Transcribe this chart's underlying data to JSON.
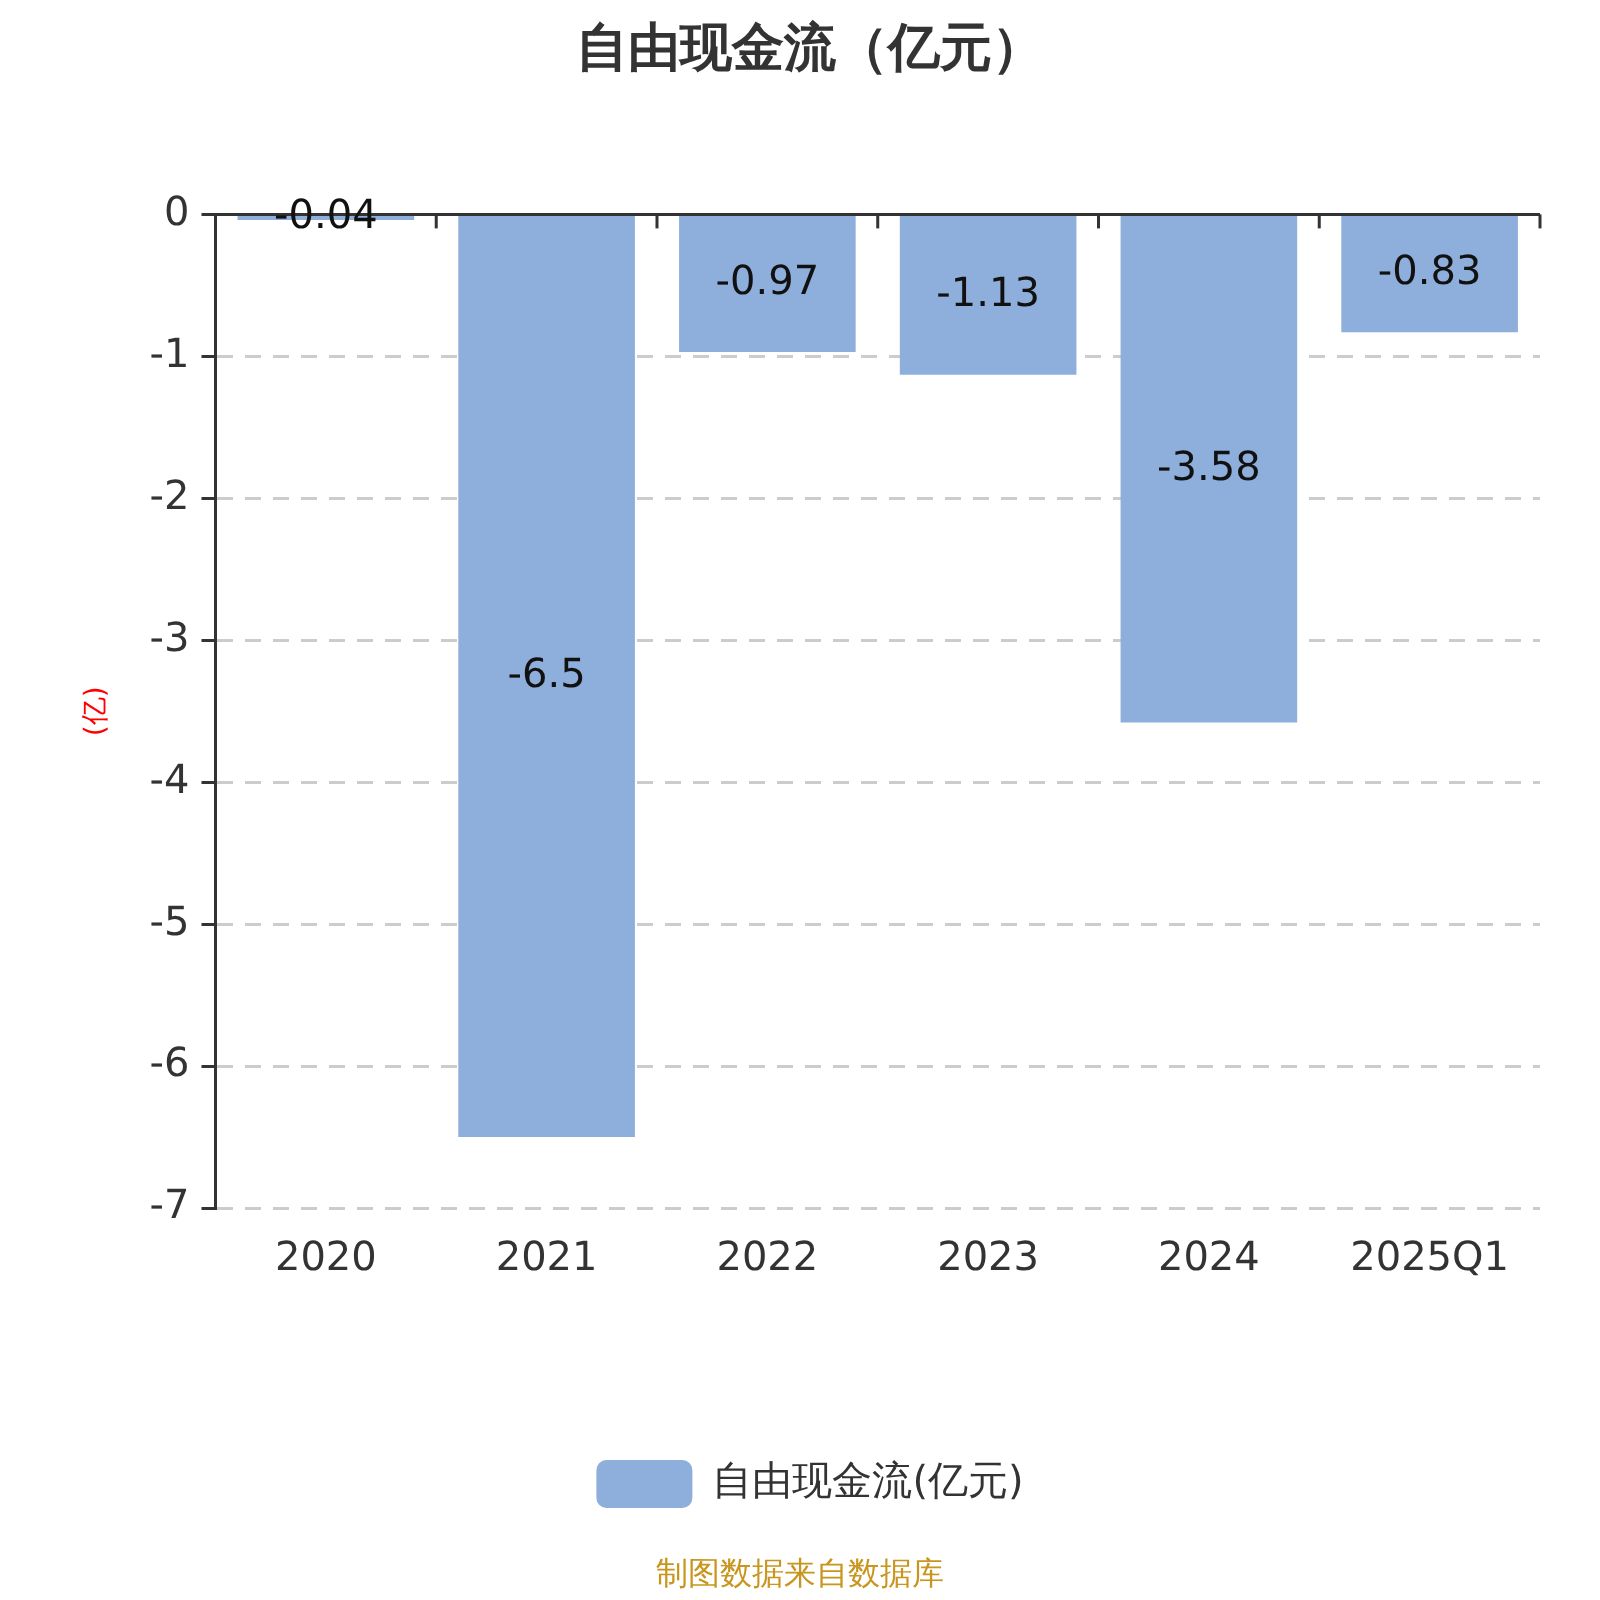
{
  "chart_data": {
    "type": "bar",
    "title": "自由现金流（亿元）",
    "ylabel": "(亿)",
    "categories": [
      "2020",
      "2021",
      "2022",
      "2023",
      "2024",
      "2025Q1"
    ],
    "series": [
      {
        "name": "自由现金流(亿元)",
        "color": "#8eaedb",
        "values": [
          -0.04,
          -6.5,
          -0.97,
          -1.13,
          -3.58,
          -0.83
        ]
      }
    ],
    "ylim": [
      -7,
      0
    ],
    "yticks": [
      -7,
      -6,
      -5,
      -4,
      -3,
      -2,
      -1,
      0
    ],
    "grid": "y",
    "legend": "bottom",
    "data_labels": true,
    "annotations": [
      "制图数据来自数据库"
    ]
  }
}
